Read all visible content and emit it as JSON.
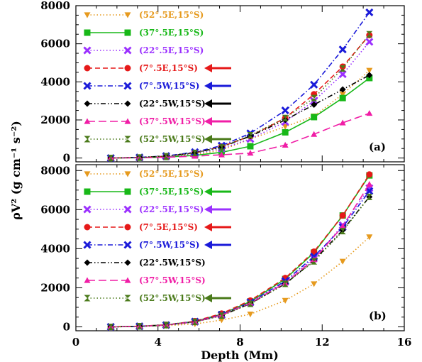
{
  "chart_data": [
    {
      "type": "line",
      "panel": "(a)",
      "xlabel": "Depth (Mm)",
      "ylabel": "ρV² (g cm⁻¹ s⁻²)",
      "xlim": [
        0,
        16
      ],
      "ylim": [
        -200,
        8000
      ],
      "xticks": [
        "0",
        "4",
        "8",
        "12",
        "16"
      ],
      "yticks": [
        "0",
        "2000",
        "4000",
        "6000",
        "8000"
      ],
      "legend_position": "top-left",
      "x": [
        1.7,
        3.1,
        4.4,
        5.8,
        7.1,
        8.5,
        10.2,
        11.6,
        13.0,
        14.3
      ],
      "series": [
        {
          "name": "(52°.5E,15°S)",
          "color": "#e69a1e",
          "dash": "dot",
          "marker": "triangle-down",
          "arrow": false,
          "values": [
            0,
            20,
            60,
            170,
            420,
            1000,
            1650,
            2200,
            3350,
            4600
          ]
        },
        {
          "name": "(37°.5E,15°S)",
          "color": "#18b818",
          "dash": "solid",
          "marker": "square",
          "arrow": false,
          "values": [
            0,
            15,
            50,
            140,
            300,
            620,
            1350,
            2150,
            3150,
            4200
          ]
        },
        {
          "name": "(22°.5E,15°S)",
          "color": "#9b30ff",
          "dash": "dot",
          "marker": "x",
          "arrow": false,
          "values": [
            0,
            25,
            80,
            230,
            500,
            1000,
            1900,
            3000,
            4400,
            6100
          ]
        },
        {
          "name": "(7°.5E,15°S)",
          "color": "#e61919",
          "dash": "dash",
          "marker": "circle",
          "arrow": true,
          "values": [
            0,
            30,
            95,
            270,
            600,
            1150,
            2100,
            3350,
            4800,
            6450
          ]
        },
        {
          "name": "(7°.5W,15°S)",
          "color": "#1a1ad9",
          "dash": "dashdot",
          "marker": "x",
          "arrow": true,
          "values": [
            0,
            35,
            110,
            310,
            650,
            1300,
            2500,
            3850,
            5700,
            7650
          ]
        },
        {
          "name": "(22°.5W,15°S)",
          "color": "#000000",
          "dash": "dashdotdot",
          "marker": "diamond",
          "arrow": true,
          "values": [
            0,
            30,
            100,
            280,
            580,
            1150,
            2000,
            2800,
            3600,
            4350
          ]
        },
        {
          "name": "(37°.5W,15°S)",
          "color": "#f01ea6",
          "dash": "longdash",
          "marker": "triangle-up",
          "arrow": true,
          "values": [
            0,
            12,
            40,
            100,
            170,
            260,
            680,
            1250,
            1850,
            2350
          ]
        },
        {
          "name": "(52°.5W,15°S)",
          "color": "#4a7a1a",
          "dash": "dot",
          "marker": "hourglass",
          "arrow": true,
          "values": [
            0,
            28,
            90,
            260,
            560,
            1200,
            2100,
            3150,
            4700,
            6500
          ]
        }
      ]
    },
    {
      "type": "line",
      "panel": "(b)",
      "xlabel": "Depth (Mm)",
      "ylabel": "ρV² (g cm⁻¹ s⁻²)",
      "xlim": [
        0,
        16
      ],
      "ylim": [
        -200,
        8300
      ],
      "xticks": [
        "0",
        "4",
        "8",
        "12",
        "16"
      ],
      "yticks": [
        "0",
        "2000",
        "4000",
        "6000",
        "8000"
      ],
      "legend_position": "top-left",
      "x": [
        1.7,
        3.1,
        4.4,
        5.8,
        7.1,
        8.5,
        10.2,
        11.6,
        13.0,
        14.3
      ],
      "series": [
        {
          "name": "(52°.5E,15°S)",
          "color": "#e69a1e",
          "dash": "dot",
          "marker": "triangle-down",
          "arrow": false,
          "values": [
            0,
            20,
            60,
            150,
            350,
            650,
            1350,
            2200,
            3350,
            4600
          ]
        },
        {
          "name": "(37°.5E,15°S)",
          "color": "#18b818",
          "dash": "solid",
          "marker": "square",
          "arrow": true,
          "values": [
            0,
            30,
            100,
            280,
            650,
            1300,
            2450,
            3800,
            5700,
            7750
          ]
        },
        {
          "name": "(22°.5E,15°S)",
          "color": "#9b30ff",
          "dash": "dot",
          "marker": "x",
          "arrow": true,
          "values": [
            0,
            25,
            90,
            260,
            600,
            1250,
            2300,
            3500,
            5200,
            7100
          ]
        },
        {
          "name": "(7°.5E,15°S)",
          "color": "#e61919",
          "dash": "dash",
          "marker": "circle",
          "arrow": true,
          "values": [
            0,
            32,
            105,
            290,
            680,
            1350,
            2500,
            3850,
            5700,
            7800
          ]
        },
        {
          "name": "(7°.5W,15°S)",
          "color": "#1a1ad9",
          "dash": "dashdot",
          "marker": "x",
          "arrow": true,
          "values": [
            0,
            28,
            95,
            270,
            620,
            1250,
            2350,
            3600,
            5100,
            6950
          ]
        },
        {
          "name": "(22°.5W,15°S)",
          "color": "#000000",
          "dash": "dashdotdot",
          "marker": "diamond",
          "arrow": false,
          "values": [
            0,
            26,
            90,
            250,
            580,
            1200,
            2200,
            3400,
            4950,
            6650
          ]
        },
        {
          "name": "(37°.5W,15°S)",
          "color": "#f01ea6",
          "dash": "longdash",
          "marker": "triangle-up",
          "arrow": false,
          "values": [
            0,
            27,
            92,
            255,
            600,
            1220,
            2250,
            3450,
            5150,
            7300
          ]
        },
        {
          "name": "(52°.5W,15°S)",
          "color": "#4a7a1a",
          "dash": "dot",
          "marker": "hourglass",
          "arrow": true,
          "values": [
            0,
            25,
            88,
            250,
            570,
            1180,
            2200,
            3350,
            4900,
            6650
          ]
        }
      ]
    }
  ]
}
